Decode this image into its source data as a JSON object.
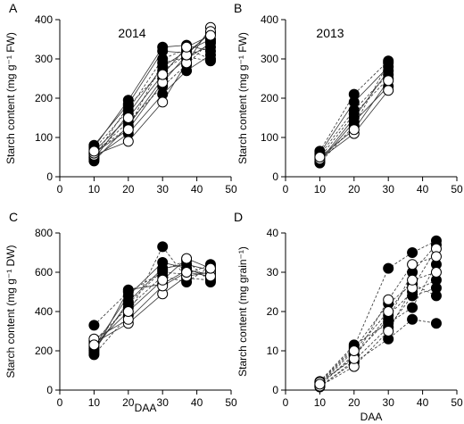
{
  "figure": {
    "shared_xlabel": "DAA"
  },
  "chart_data": [
    {
      "type": "scatter",
      "panel_label": "A",
      "annotation": "2014",
      "ylabel": "Starch content (mg g⁻¹ FW)",
      "xlabel": "",
      "xlim": [
        0,
        50
      ],
      "ylim": [
        0,
        400
      ],
      "xticks": [
        0,
        10,
        20,
        30,
        40,
        50
      ],
      "yticks": [
        0,
        100,
        200,
        300,
        400
      ],
      "x": [
        10,
        20,
        30,
        37,
        44
      ],
      "series": [
        {
          "filled": false,
          "line": "solid",
          "values": [
            55,
            90,
            190,
            290,
            380
          ]
        },
        {
          "filled": false,
          "line": "solid",
          "values": [
            60,
            120,
            240,
            310,
            370
          ]
        },
        {
          "filled": false,
          "line": "solid",
          "values": [
            65,
            150,
            260,
            330,
            360
          ]
        },
        {
          "filled": true,
          "line": "solid",
          "values": [
            40,
            130,
            250,
            300,
            340
          ]
        },
        {
          "filled": true,
          "line": "solid",
          "values": [
            45,
            160,
            280,
            320,
            350
          ]
        },
        {
          "filled": true,
          "line": "dashed",
          "values": [
            50,
            180,
            270,
            310,
            330
          ]
        },
        {
          "filled": true,
          "line": "solid",
          "values": [
            75,
            195,
            330,
            335,
            320
          ]
        },
        {
          "filled": true,
          "line": "dashed",
          "values": [
            70,
            170,
            300,
            325,
            300
          ]
        },
        {
          "filled": true,
          "line": "solid",
          "values": [
            48,
            110,
            210,
            270,
            310
          ]
        },
        {
          "filled": true,
          "line": "dashed",
          "values": [
            58,
            140,
            230,
            285,
            345
          ]
        },
        {
          "filled": true,
          "line": "solid",
          "values": [
            80,
            185,
            320,
            315,
            365
          ]
        },
        {
          "filled": true,
          "line": "dashed",
          "values": [
            62,
            125,
            290,
            305,
            295
          ]
        }
      ]
    },
    {
      "type": "scatter",
      "panel_label": "B",
      "annotation": "2013",
      "ylabel": "Starch content (mg g⁻¹ FW)",
      "xlabel": "",
      "xlim": [
        0,
        50
      ],
      "ylim": [
        0,
        400
      ],
      "xticks": [
        0,
        10,
        20,
        30,
        40,
        50
      ],
      "yticks": [
        0,
        100,
        200,
        300,
        400
      ],
      "x": [
        10,
        20,
        30
      ],
      "series": [
        {
          "filled": false,
          "line": "solid",
          "values": [
            45,
            110,
            220
          ]
        },
        {
          "filled": false,
          "line": "solid",
          "values": [
            50,
            120,
            245
          ]
        },
        {
          "filled": true,
          "line": "dashed",
          "values": [
            35,
            130,
            290
          ]
        },
        {
          "filled": true,
          "line": "solid",
          "values": [
            40,
            150,
            270
          ]
        },
        {
          "filled": true,
          "line": "dashed",
          "values": [
            55,
            170,
            260
          ]
        },
        {
          "filled": true,
          "line": "solid",
          "values": [
            60,
            190,
            280
          ]
        },
        {
          "filled": true,
          "line": "dashed",
          "values": [
            65,
            210,
            295
          ]
        },
        {
          "filled": true,
          "line": "solid",
          "values": [
            38,
            140,
            230
          ]
        },
        {
          "filled": true,
          "line": "dashed",
          "values": [
            48,
            160,
            250
          ]
        }
      ]
    },
    {
      "type": "scatter",
      "panel_label": "C",
      "annotation": "",
      "ylabel": "Starch content (mg g⁻¹ DW)",
      "xlabel": "",
      "xlim": [
        0,
        50
      ],
      "ylim": [
        0,
        800
      ],
      "xticks": [
        0,
        10,
        20,
        30,
        40,
        50
      ],
      "yticks": [
        0,
        200,
        400,
        600,
        800
      ],
      "x": [
        10,
        20,
        30,
        37,
        44
      ],
      "series": [
        {
          "filled": false,
          "line": "solid",
          "values": [
            240,
            340,
            490,
            580,
            600
          ]
        },
        {
          "filled": false,
          "line": "solid",
          "values": [
            260,
            360,
            530,
            600,
            580
          ]
        },
        {
          "filled": false,
          "line": "solid",
          "values": [
            230,
            400,
            560,
            670,
            620
          ]
        },
        {
          "filled": true,
          "line": "dashed",
          "values": [
            180,
            380,
            730,
            570,
            560
          ]
        },
        {
          "filled": true,
          "line": "solid",
          "values": [
            200,
            450,
            620,
            640,
            610
          ]
        },
        {
          "filled": true,
          "line": "dashed",
          "values": [
            330,
            500,
            600,
            590,
            640
          ]
        },
        {
          "filled": true,
          "line": "solid",
          "values": [
            220,
            480,
            650,
            620,
            570
          ]
        },
        {
          "filled": true,
          "line": "dashed",
          "values": [
            250,
            420,
            580,
            550,
            630
          ]
        },
        {
          "filled": true,
          "line": "solid",
          "values": [
            190,
            510,
            540,
            610,
            590
          ]
        },
        {
          "filled": true,
          "line": "dashed",
          "values": [
            210,
            440,
            610,
            660,
            550
          ]
        }
      ]
    },
    {
      "type": "scatter",
      "panel_label": "D",
      "annotation": "",
      "ylabel": "Starch content (mg grain⁻¹)",
      "xlabel": "DAA",
      "xlim": [
        0,
        50
      ],
      "ylim": [
        0,
        40
      ],
      "xticks": [
        0,
        10,
        20,
        30,
        40,
        50
      ],
      "yticks": [
        0,
        10,
        20,
        30,
        40
      ],
      "x": [
        10,
        20,
        30,
        37,
        44
      ],
      "series": [
        {
          "filled": false,
          "line": "dashed",
          "values": [
            1,
            6,
            15,
            26,
            36
          ]
        },
        {
          "filled": false,
          "line": "dashed",
          "values": [
            2,
            8,
            23,
            32,
            34
          ]
        },
        {
          "filled": false,
          "line": "dashed",
          "values": [
            1.5,
            10,
            20,
            28,
            30
          ]
        },
        {
          "filled": true,
          "line": "dashed",
          "values": [
            1,
            7,
            13,
            18,
            17
          ]
        },
        {
          "filled": true,
          "line": "dashed",
          "values": [
            2,
            11,
            31,
            35,
            38
          ]
        },
        {
          "filled": true,
          "line": "dashed",
          "values": [
            1.2,
            9,
            18,
            30,
            37
          ]
        },
        {
          "filled": true,
          "line": "dashed",
          "values": [
            0.8,
            7.5,
            16,
            24,
            26
          ]
        },
        {
          "filled": true,
          "line": "dashed",
          "values": [
            1.8,
            10.5,
            22,
            27,
            24
          ]
        },
        {
          "filled": true,
          "line": "dashed",
          "values": [
            1.4,
            8.5,
            19,
            25,
            28
          ]
        },
        {
          "filled": true,
          "line": "dashed",
          "values": [
            2.2,
            11.5,
            17,
            21,
            32
          ]
        }
      ]
    }
  ]
}
